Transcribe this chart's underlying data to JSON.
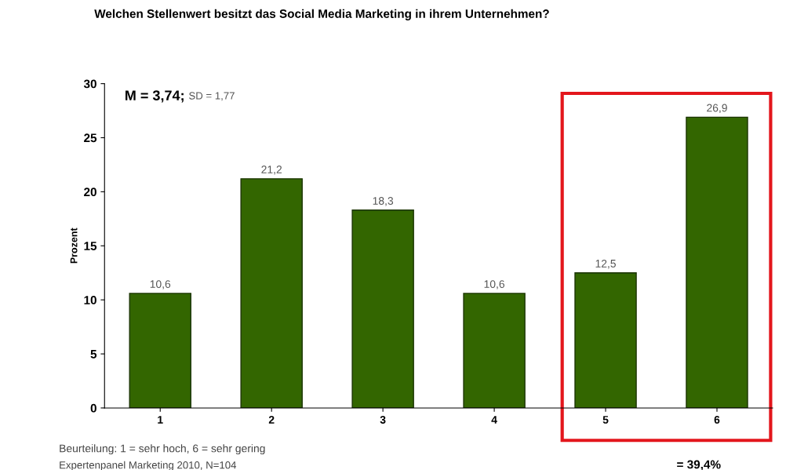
{
  "chart_data": {
    "type": "bar",
    "title": "Welchen Stellenwert besitzt das Social Media Marketing in ihrem Unternehmen?",
    "ylabel": "Prozent",
    "categories": [
      "1",
      "2",
      "3",
      "4",
      "5",
      "6"
    ],
    "values": [
      10.6,
      21.2,
      18.3,
      10.6,
      12.5,
      26.9
    ],
    "value_labels": [
      "10,6",
      "21,2",
      "18,3",
      "10,6",
      "12,5",
      "26,9"
    ],
    "color": "#336600",
    "ylim": [
      0,
      30
    ],
    "yticks": [
      0,
      5,
      10,
      15,
      20,
      25,
      30
    ],
    "grid": false,
    "annotations": [
      "M = 3,74;",
      "SD = 1,77",
      "Beurteilung: 1 = sehr hoch, 6 = sehr gering",
      "Expertenpanel Marketing 2010, N=104",
      "= 39,4%"
    ]
  }
}
